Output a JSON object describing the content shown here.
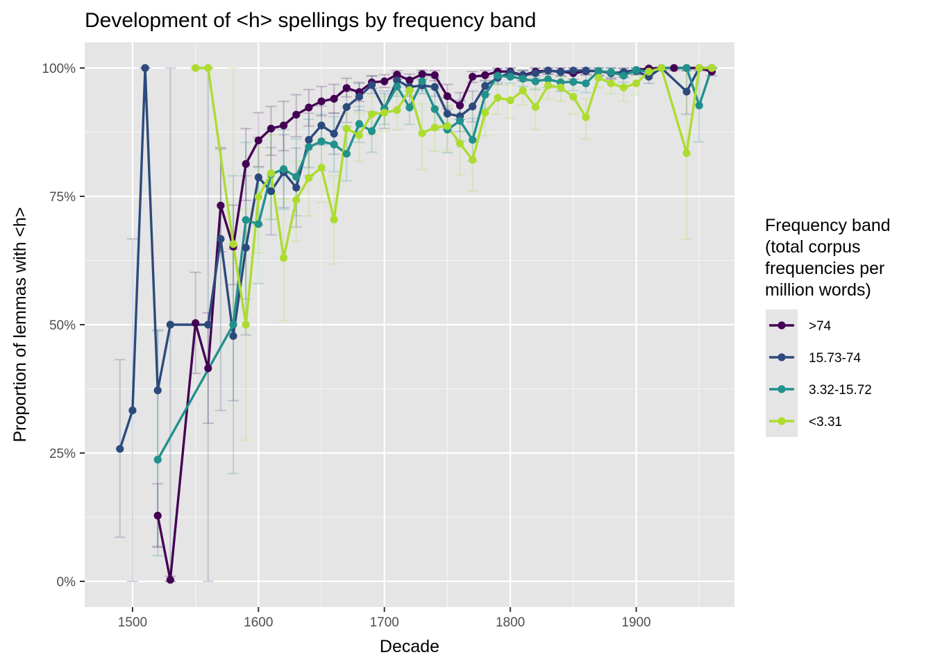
{
  "chart_data": {
    "type": "line",
    "title": "Development of <h> spellings by frequency band",
    "xlabel": "Decade",
    "ylabel": "Proportion of lemmas with <h>",
    "xlim": [
      1462,
      1978
    ],
    "ylim": [
      -0.05,
      1.05
    ],
    "x_ticks": [
      1500,
      1600,
      1700,
      1800,
      1900
    ],
    "y_ticks": [
      0,
      0.25,
      0.5,
      0.75,
      1.0
    ],
    "y_tick_labels": [
      "0%",
      "25%",
      "50%",
      "75%",
      "100%"
    ],
    "grid": true,
    "legend": {
      "title_lines": [
        "Frequency band",
        "(total corpus",
        "frequencies per",
        "million words)"
      ],
      "placement": "right"
    },
    "series": [
      {
        "name": ">74",
        "color": "#440154",
        "x": [
          1520,
          1530,
          1550,
          1560,
          1570,
          1580,
          1590,
          1600,
          1610,
          1620,
          1630,
          1640,
          1650,
          1660,
          1670,
          1680,
          1690,
          1700,
          1710,
          1720,
          1730,
          1740,
          1750,
          1760,
          1770,
          1780,
          1790,
          1800,
          1810,
          1820,
          1830,
          1840,
          1850,
          1860,
          1870,
          1880,
          1890,
          1900,
          1910,
          1920,
          1930,
          1940,
          1950,
          1960
        ],
        "y": [
          0.128,
          0.003,
          0.503,
          0.415,
          0.732,
          0.652,
          0.813,
          0.859,
          0.882,
          0.888,
          0.909,
          0.923,
          0.935,
          0.94,
          0.961,
          0.953,
          0.972,
          0.974,
          0.987,
          0.976,
          0.988,
          0.986,
          0.945,
          0.927,
          0.983,
          0.986,
          0.993,
          0.993,
          0.986,
          0.993,
          0.995,
          0.993,
          0.99,
          0.994,
          0.994,
          0.99,
          0.992,
          0.996,
          0.999,
          1.0,
          1.0,
          1.0,
          1.0,
          0.993
        ],
        "err_low": [
          0.068,
          0.0,
          0.405,
          0.308,
          0.642,
          0.578,
          0.742,
          0.808,
          0.83,
          0.839,
          0.866,
          0.887,
          0.907,
          0.912,
          0.944,
          0.935,
          0.96,
          0.962,
          0.978,
          0.965,
          0.978,
          0.975,
          0.92,
          0.9,
          0.972,
          0.976,
          0.985,
          0.985,
          0.976,
          0.985,
          0.988,
          0.985,
          0.978,
          0.986,
          0.985,
          0.978,
          0.982,
          0.988,
          0.992,
          0.995,
          0.995,
          0.995,
          0.995,
          0.985
        ],
        "err_high": [
          0.19,
          0.01,
          0.602,
          0.523,
          0.845,
          0.733,
          0.882,
          0.913,
          0.925,
          0.935,
          0.948,
          0.958,
          0.964,
          0.968,
          0.98,
          0.972,
          0.985,
          0.987,
          0.995,
          0.988,
          0.996,
          0.995,
          0.968,
          0.952,
          0.993,
          0.995,
          1.0,
          1.0,
          0.995,
          1.0,
          1.0,
          1.0,
          1.0,
          1.0,
          1.0,
          1.0,
          1.0,
          1.0,
          1.0,
          1.0,
          1.0,
          1.0,
          1.0,
          1.0
        ]
      },
      {
        "name": "15.73-74",
        "color": "#2c4a7c",
        "x": [
          1490,
          1500,
          1510,
          1520,
          1530,
          1560,
          1570,
          1580,
          1590,
          1600,
          1610,
          1620,
          1630,
          1640,
          1650,
          1660,
          1670,
          1680,
          1690,
          1700,
          1710,
          1720,
          1730,
          1740,
          1750,
          1760,
          1770,
          1780,
          1790,
          1800,
          1810,
          1820,
          1830,
          1840,
          1850,
          1860,
          1870,
          1880,
          1890,
          1900,
          1910,
          1920,
          1940,
          1950,
          1960
        ],
        "y": [
          0.258,
          0.333,
          1.0,
          0.372,
          0.5,
          0.5,
          0.667,
          0.478,
          0.65,
          0.787,
          0.76,
          0.797,
          0.767,
          0.86,
          0.888,
          0.872,
          0.924,
          0.944,
          0.967,
          0.92,
          0.976,
          0.963,
          0.966,
          0.963,
          0.911,
          0.906,
          0.925,
          0.965,
          0.981,
          0.991,
          0.985,
          0.99,
          0.995,
          0.992,
          0.995,
          0.995,
          0.994,
          0.99,
          0.992,
          0.994,
          0.983,
          1.0,
          0.954,
          1.0,
          1.0
        ],
        "err_low": [
          0.086,
          0.0,
          1.0,
          0.066,
          0.0,
          0.0,
          0.333,
          0.352,
          0.48,
          0.694,
          0.675,
          0.728,
          0.69,
          0.806,
          0.85,
          0.832,
          0.894,
          0.917,
          0.95,
          0.882,
          0.962,
          0.945,
          0.95,
          0.945,
          0.88,
          0.876,
          0.895,
          0.948,
          0.968,
          0.982,
          0.974,
          0.98,
          0.988,
          0.984,
          0.988,
          0.988,
          0.986,
          0.98,
          0.982,
          0.986,
          0.97,
          1.0,
          0.91,
          1.0,
          1.0
        ],
        "err_high": [
          0.432,
          0.667,
          1.0,
          0.488,
          1.0,
          1.0,
          0.842,
          0.647,
          0.79,
          0.865,
          0.845,
          0.87,
          0.844,
          0.912,
          0.926,
          0.912,
          0.954,
          0.97,
          0.984,
          0.955,
          0.99,
          0.981,
          0.982,
          0.981,
          0.942,
          0.937,
          0.955,
          0.982,
          0.995,
          1.0,
          0.996,
          1.0,
          1.0,
          1.0,
          1.0,
          1.0,
          1.0,
          1.0,
          1.0,
          1.0,
          0.995,
          1.0,
          0.995,
          1.0,
          1.0
        ]
      },
      {
        "name": "3.32-15.72",
        "color": "#21918c",
        "x": [
          1520,
          1580,
          1590,
          1600,
          1610,
          1620,
          1630,
          1640,
          1650,
          1660,
          1670,
          1680,
          1690,
          1700,
          1710,
          1720,
          1730,
          1740,
          1750,
          1760,
          1770,
          1780,
          1790,
          1800,
          1810,
          1820,
          1830,
          1840,
          1850,
          1860,
          1870,
          1880,
          1890,
          1900,
          1910,
          1920,
          1940,
          1950,
          1960
        ],
        "y": [
          0.237,
          0.5,
          0.704,
          0.696,
          0.793,
          0.803,
          0.788,
          0.846,
          0.857,
          0.851,
          0.833,
          0.891,
          0.877,
          0.921,
          0.964,
          0.923,
          0.974,
          0.92,
          0.88,
          0.897,
          0.86,
          0.948,
          0.985,
          0.983,
          0.979,
          0.974,
          0.978,
          0.972,
          0.973,
          0.97,
          0.994,
          0.992,
          0.985,
          0.996,
          0.993,
          1.0,
          1.0,
          0.927,
          1.0
        ],
        "err_low": [
          0.05,
          0.21,
          0.55,
          0.58,
          0.705,
          0.725,
          0.712,
          0.79,
          0.8,
          0.798,
          0.78,
          0.855,
          0.836,
          0.89,
          0.945,
          0.89,
          0.955,
          0.88,
          0.835,
          0.858,
          0.818,
          0.922,
          0.972,
          0.97,
          0.964,
          0.958,
          0.962,
          0.954,
          0.956,
          0.952,
          0.985,
          0.982,
          0.972,
          0.988,
          0.984,
          1.0,
          1.0,
          0.856,
          1.0
        ],
        "err_high": [
          0.49,
          0.79,
          0.855,
          0.806,
          0.88,
          0.88,
          0.862,
          0.9,
          0.91,
          0.905,
          0.886,
          0.925,
          0.915,
          0.95,
          0.982,
          0.955,
          0.992,
          0.958,
          0.925,
          0.935,
          0.902,
          0.974,
          0.998,
          0.996,
          0.994,
          0.99,
          0.994,
          0.99,
          0.99,
          0.988,
          1.0,
          1.0,
          0.998,
          1.0,
          1.0,
          1.0,
          1.0,
          0.995,
          1.0
        ]
      },
      {
        "name": "<3.31",
        "color": "#addc30",
        "x": [
          1550,
          1560,
          1580,
          1590,
          1600,
          1610,
          1620,
          1630,
          1640,
          1650,
          1660,
          1670,
          1680,
          1690,
          1700,
          1710,
          1720,
          1730,
          1740,
          1750,
          1760,
          1770,
          1780,
          1790,
          1800,
          1810,
          1820,
          1830,
          1840,
          1850,
          1860,
          1870,
          1880,
          1890,
          1900,
          1910,
          1920,
          1940,
          1950,
          1960
        ],
        "y": [
          1.0,
          1.0,
          0.657,
          0.5,
          0.749,
          0.795,
          0.63,
          0.743,
          0.786,
          0.806,
          0.705,
          0.882,
          0.869,
          0.91,
          0.913,
          0.918,
          0.957,
          0.873,
          0.884,
          0.887,
          0.853,
          0.821,
          0.913,
          0.942,
          0.937,
          0.956,
          0.924,
          0.966,
          0.962,
          0.944,
          0.904,
          0.981,
          0.97,
          0.962,
          0.97,
          0.993,
          1.0,
          0.834,
          1.0,
          1.0
        ],
        "err_low": [
          1.0,
          1.0,
          0.5,
          0.275,
          0.64,
          0.705,
          0.508,
          0.662,
          0.712,
          0.738,
          0.618,
          0.832,
          0.818,
          0.87,
          0.876,
          0.88,
          0.928,
          0.802,
          0.838,
          0.84,
          0.792,
          0.76,
          0.868,
          0.91,
          0.902,
          0.928,
          0.88,
          0.94,
          0.935,
          0.91,
          0.862,
          0.962,
          0.95,
          0.935,
          0.948,
          0.98,
          1.0,
          0.666,
          1.0,
          1.0
        ],
        "err_high": [
          1.0,
          1.0,
          1.0,
          0.725,
          0.845,
          0.87,
          0.745,
          0.818,
          0.85,
          0.862,
          0.79,
          0.925,
          0.912,
          0.945,
          0.945,
          0.95,
          0.98,
          0.93,
          0.925,
          0.928,
          0.905,
          0.875,
          0.95,
          0.968,
          0.966,
          0.978,
          0.96,
          0.985,
          0.982,
          0.972,
          0.94,
          0.994,
          0.986,
          0.982,
          0.986,
          1.0,
          1.0,
          1.0,
          1.0,
          1.0
        ]
      }
    ]
  }
}
